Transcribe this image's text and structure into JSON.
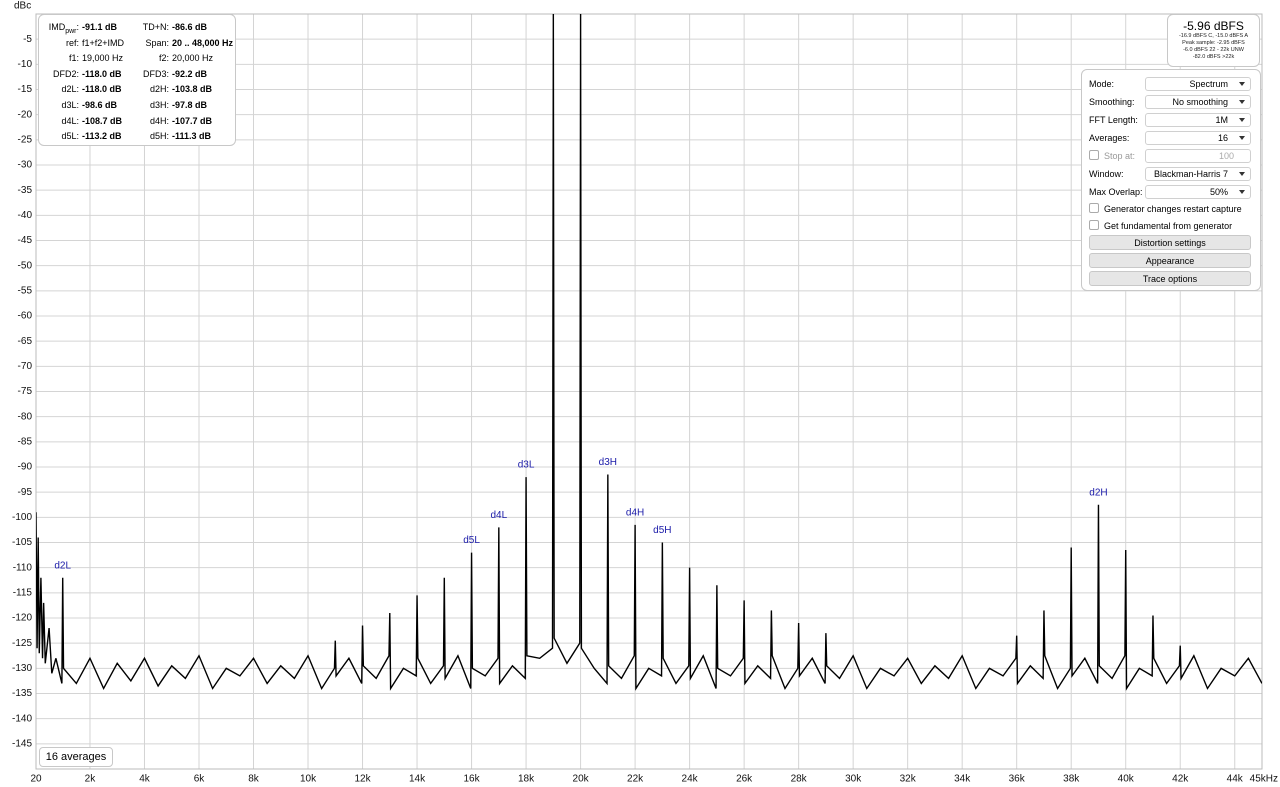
{
  "chart_data": {
    "type": "line",
    "y_label": "dBc",
    "xlim": [
      20,
      45000
    ],
    "ylim": [
      -150,
      0
    ],
    "xticks": [
      20,
      {
        "value": 2000,
        "label": "2k"
      },
      {
        "value": 4000,
        "label": "4k"
      },
      {
        "value": 6000,
        "label": "6k"
      },
      {
        "value": 8000,
        "label": "8k"
      },
      {
        "value": 10000,
        "label": "10k"
      },
      {
        "value": 12000,
        "label": "12k"
      },
      {
        "value": 14000,
        "label": "14k"
      },
      {
        "value": 16000,
        "label": "16k"
      },
      {
        "value": 18000,
        "label": "18k"
      },
      {
        "value": 20000,
        "label": "20k"
      },
      {
        "value": 22000,
        "label": "22k"
      },
      {
        "value": 24000,
        "label": "24k"
      },
      {
        "value": 26000,
        "label": "26k"
      },
      {
        "value": 28000,
        "label": "28k"
      },
      {
        "value": 30000,
        "label": "30k"
      },
      {
        "value": 32000,
        "label": "32k"
      },
      {
        "value": 34000,
        "label": "34k"
      },
      {
        "value": 36000,
        "label": "36k"
      },
      {
        "value": 38000,
        "label": "38k"
      },
      {
        "value": 40000,
        "label": "40k"
      },
      {
        "value": 42000,
        "label": "42k"
      },
      {
        "value": 44000,
        "label": "44k"
      },
      {
        "value": 45000,
        "label": "45kHz"
      }
    ],
    "yticks": [
      -5,
      -10,
      -15,
      -20,
      -25,
      -30,
      -35,
      -40,
      -45,
      -50,
      -55,
      -60,
      -65,
      -70,
      -75,
      -80,
      -85,
      -90,
      -95,
      -100,
      -105,
      -110,
      -115,
      -120,
      -125,
      -130,
      -135,
      -140,
      -145
    ],
    "grid": true,
    "series": [
      {
        "color": "#000000",
        "x": [
          20,
          60,
          100,
          140,
          200,
          260,
          300,
          360,
          500,
          600,
          750,
          970,
          1000,
          1030,
          1500,
          2000,
          2500,
          3000,
          3500,
          4000,
          4500,
          5000,
          5500,
          6000,
          6500,
          7000,
          7500,
          8000,
          8500,
          9000,
          9500,
          10000,
          10500,
          10970,
          11000,
          11030,
          11500,
          11970,
          12000,
          12030,
          12500,
          12970,
          13000,
          13030,
          13500,
          13970,
          14000,
          14030,
          14500,
          14970,
          15000,
          15030,
          15500,
          15970,
          16000,
          16030,
          16500,
          16970,
          17000,
          17030,
          17500,
          17970,
          18000,
          18030,
          18500,
          18970,
          19000,
          19030,
          19500,
          19970,
          20000,
          20030,
          20500,
          20970,
          21000,
          21030,
          21500,
          21970,
          22000,
          22030,
          22500,
          22970,
          23000,
          23030,
          23500,
          23970,
          24000,
          24030,
          24500,
          24970,
          25000,
          25030,
          25500,
          25970,
          26000,
          26030,
          26500,
          26970,
          27000,
          27030,
          27500,
          27970,
          28000,
          28030,
          28500,
          28970,
          29000,
          29030,
          29500,
          30000,
          30500,
          31000,
          31500,
          32000,
          32500,
          33000,
          33500,
          34000,
          34500,
          35000,
          35500,
          35970,
          36000,
          36030,
          36500,
          36970,
          37000,
          37030,
          37500,
          37970,
          38000,
          38030,
          38500,
          38970,
          39000,
          39030,
          39500,
          39970,
          40000,
          40030,
          40500,
          40970,
          41000,
          41030,
          41500,
          41970,
          42000,
          42030,
          42500,
          43000,
          43500,
          44000,
          44500,
          45000
        ],
        "values": [
          -99,
          -126,
          -104,
          -127,
          -112,
          -128,
          -117,
          -129,
          -122,
          -131,
          -128,
          -133,
          -112,
          -130,
          -133,
          -128,
          -134,
          -129,
          -132.5,
          -128,
          -133.5,
          -129.5,
          -132,
          -127.5,
          -134,
          -130,
          -131.5,
          -128,
          -133,
          -129.5,
          -132,
          -127.5,
          -134,
          -130,
          -124.5,
          -131.5,
          -128,
          -133,
          -121.5,
          -129.5,
          -132,
          -127.5,
          -119,
          -134,
          -130,
          -131.5,
          -115.5,
          -128,
          -133,
          -129.5,
          -112,
          -132,
          -127.5,
          -134,
          -107,
          -130,
          -131.5,
          -128,
          -102,
          -133,
          -129.5,
          -132,
          -92,
          -127.5,
          -128,
          -126,
          0,
          -124,
          -129,
          -125,
          0,
          -126,
          -130,
          -133,
          -91.5,
          -129.5,
          -132,
          -127.5,
          -101.5,
          -134,
          -130,
          -131.5,
          -105,
          -128,
          -133,
          -129.5,
          -110,
          -132,
          -127.5,
          -134,
          -113.5,
          -130,
          -131.5,
          -128,
          -116.5,
          -133,
          -129.5,
          -132,
          -118.5,
          -127.5,
          -134,
          -130,
          -121,
          -131.5,
          -128,
          -133,
          -123,
          -129.5,
          -132,
          -127.5,
          -134,
          -130,
          -131.5,
          -128,
          -133,
          -129.5,
          -132,
          -127.5,
          -134,
          -130,
          -131.5,
          -128,
          -123.5,
          -133,
          -129.5,
          -132,
          -118.5,
          -127.5,
          -134,
          -130,
          -106,
          -131.5,
          -128,
          -133,
          -97.5,
          -129.5,
          -132,
          -127.5,
          -106.5,
          -134,
          -130,
          -131.5,
          -119.5,
          -128,
          -133,
          -129.5,
          -125.5,
          -132,
          -127.5,
          -134,
          -130,
          -131.5,
          -128,
          -133
        ]
      }
    ],
    "annotations": [
      {
        "text": "d2L",
        "x": 1000
      },
      {
        "text": "d5L",
        "x": 16000
      },
      {
        "text": "d4L",
        "x": 17000
      },
      {
        "text": "d3L",
        "x": 18000
      },
      {
        "text": "d3H",
        "x": 21000
      },
      {
        "text": "d4H",
        "x": 22000
      },
      {
        "text": "d5H",
        "x": 23000
      },
      {
        "text": "d2H",
        "x": 39000
      }
    ],
    "annotation_color": "#1a1aa8"
  },
  "imd_panel": {
    "rows": [
      [
        {
          "label": "IMD",
          "sub": "pwr",
          "end": ":",
          "value": "-91.1 dB"
        },
        {
          "label": "TD+N:",
          "value": "-86.6 dB"
        }
      ],
      [
        {
          "label": "ref:",
          "value": "f1+f2+IMD"
        },
        {
          "label": "Span:",
          "value": "20 .. 48,000 Hz"
        }
      ],
      [
        {
          "label": "f1:",
          "value": "19,000 Hz"
        },
        {
          "label": "f2:",
          "value": "20,000 Hz"
        }
      ],
      [
        {
          "label": "DFD2:",
          "value": "-118.0 dB"
        },
        {
          "label": "DFD3:",
          "value": "-92.2 dB"
        }
      ],
      [
        {
          "label": "d2L:",
          "value": "-118.0 dB"
        },
        {
          "label": "d2H:",
          "value": "-103.8 dB"
        }
      ],
      [
        {
          "label": "d3L:",
          "value": "-98.6 dB"
        },
        {
          "label": "d3H:",
          "value": "-97.8 dB"
        }
      ],
      [
        {
          "label": "d4L:",
          "value": "-108.7 dB"
        },
        {
          "label": "d4H:",
          "value": "-107.7 dB"
        }
      ],
      [
        {
          "label": "d5L:",
          "value": "-113.2 dB"
        },
        {
          "label": "d5H:",
          "value": "-111.3 dB"
        }
      ]
    ]
  },
  "level_panel": {
    "title": "-5.96 dBFS",
    "lines": [
      "-16.9 dBFS C, -15.0 dBFS A",
      "Peak sample: -2.95 dBFS",
      "-6.0 dBFS 22 - 22k UNW",
      "-82.0 dBFS >22k"
    ]
  },
  "controls": {
    "selects": [
      {
        "label": "Mode:",
        "value": "Spectrum"
      },
      {
        "label": "Smoothing:",
        "value": "No smoothing"
      },
      {
        "label": "FFT Length:",
        "value": "1M"
      },
      {
        "label": "Averages:",
        "value": "16"
      }
    ],
    "stop_at": {
      "label": "Stop at:",
      "value": "100"
    },
    "selects2": [
      {
        "label": "Window:",
        "value": "Blackman-Harris 7"
      },
      {
        "label": "Max Overlap:",
        "value": "50%"
      }
    ],
    "checkboxes": [
      "Generator changes restart capture",
      "Get fundamental from generator"
    ],
    "buttons": [
      "Distortion settings",
      "Appearance",
      "Trace options"
    ]
  },
  "averages_badge": "16 averages"
}
